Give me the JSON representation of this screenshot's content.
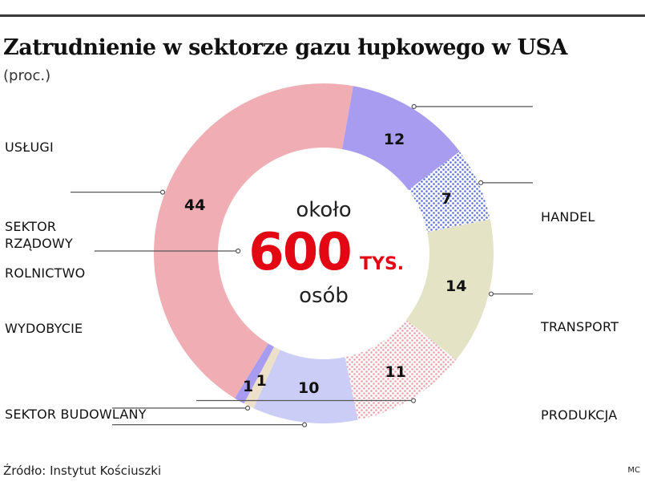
{
  "header": {
    "title": "Zatrudnienie w sektorze gazu łupkowego w USA",
    "subtitle": "(proc.)"
  },
  "center": {
    "line1": "około",
    "big": "600",
    "unit": "TYS.",
    "line3": "osób"
  },
  "footer": {
    "source": "Źródło: Instytut Kościuszki",
    "credit": "MC"
  },
  "chart_data": {
    "type": "pie",
    "title": "Zatrudnienie w sektorze gazu łupkowego w USA",
    "subtitle": "(proc.)",
    "categories": [
      "HANDEL",
      "TRANSPORT",
      "PRODUKCJA",
      "SEKTOR BUDOWLANY",
      "WYDOBYCIE",
      "ROLNICTWO",
      "SEKTOR RZĄDOWY",
      "USŁUGI"
    ],
    "values": [
      12,
      7,
      14,
      11,
      10,
      1,
      1,
      44
    ],
    "value_labels": [
      "12",
      "7",
      "14",
      "11",
      "10",
      "1",
      "1",
      "44"
    ],
    "label_lines": [
      [
        "HANDEL"
      ],
      [
        "TRANSPORT"
      ],
      [
        "PRODUKCJA"
      ],
      [
        "SEKTOR BUDOWLANY"
      ],
      [
        "WYDOBYCIE"
      ],
      [
        "ROLNICTWO"
      ],
      [
        "SEKTOR",
        "RZĄDOWY"
      ],
      [
        "USŁUGI"
      ]
    ],
    "colors": [
      "#a89cf0",
      "#8fa0e6",
      "#e4e3c6",
      "#f1c4c8",
      "#cbcdf6",
      "#ede0c8",
      "#a89cf0",
      "#f0aeb4"
    ],
    "patterns": [
      "none",
      "dots-blue",
      "none",
      "dots-pink",
      "none",
      "none",
      "none",
      "none"
    ],
    "donut": true
  }
}
